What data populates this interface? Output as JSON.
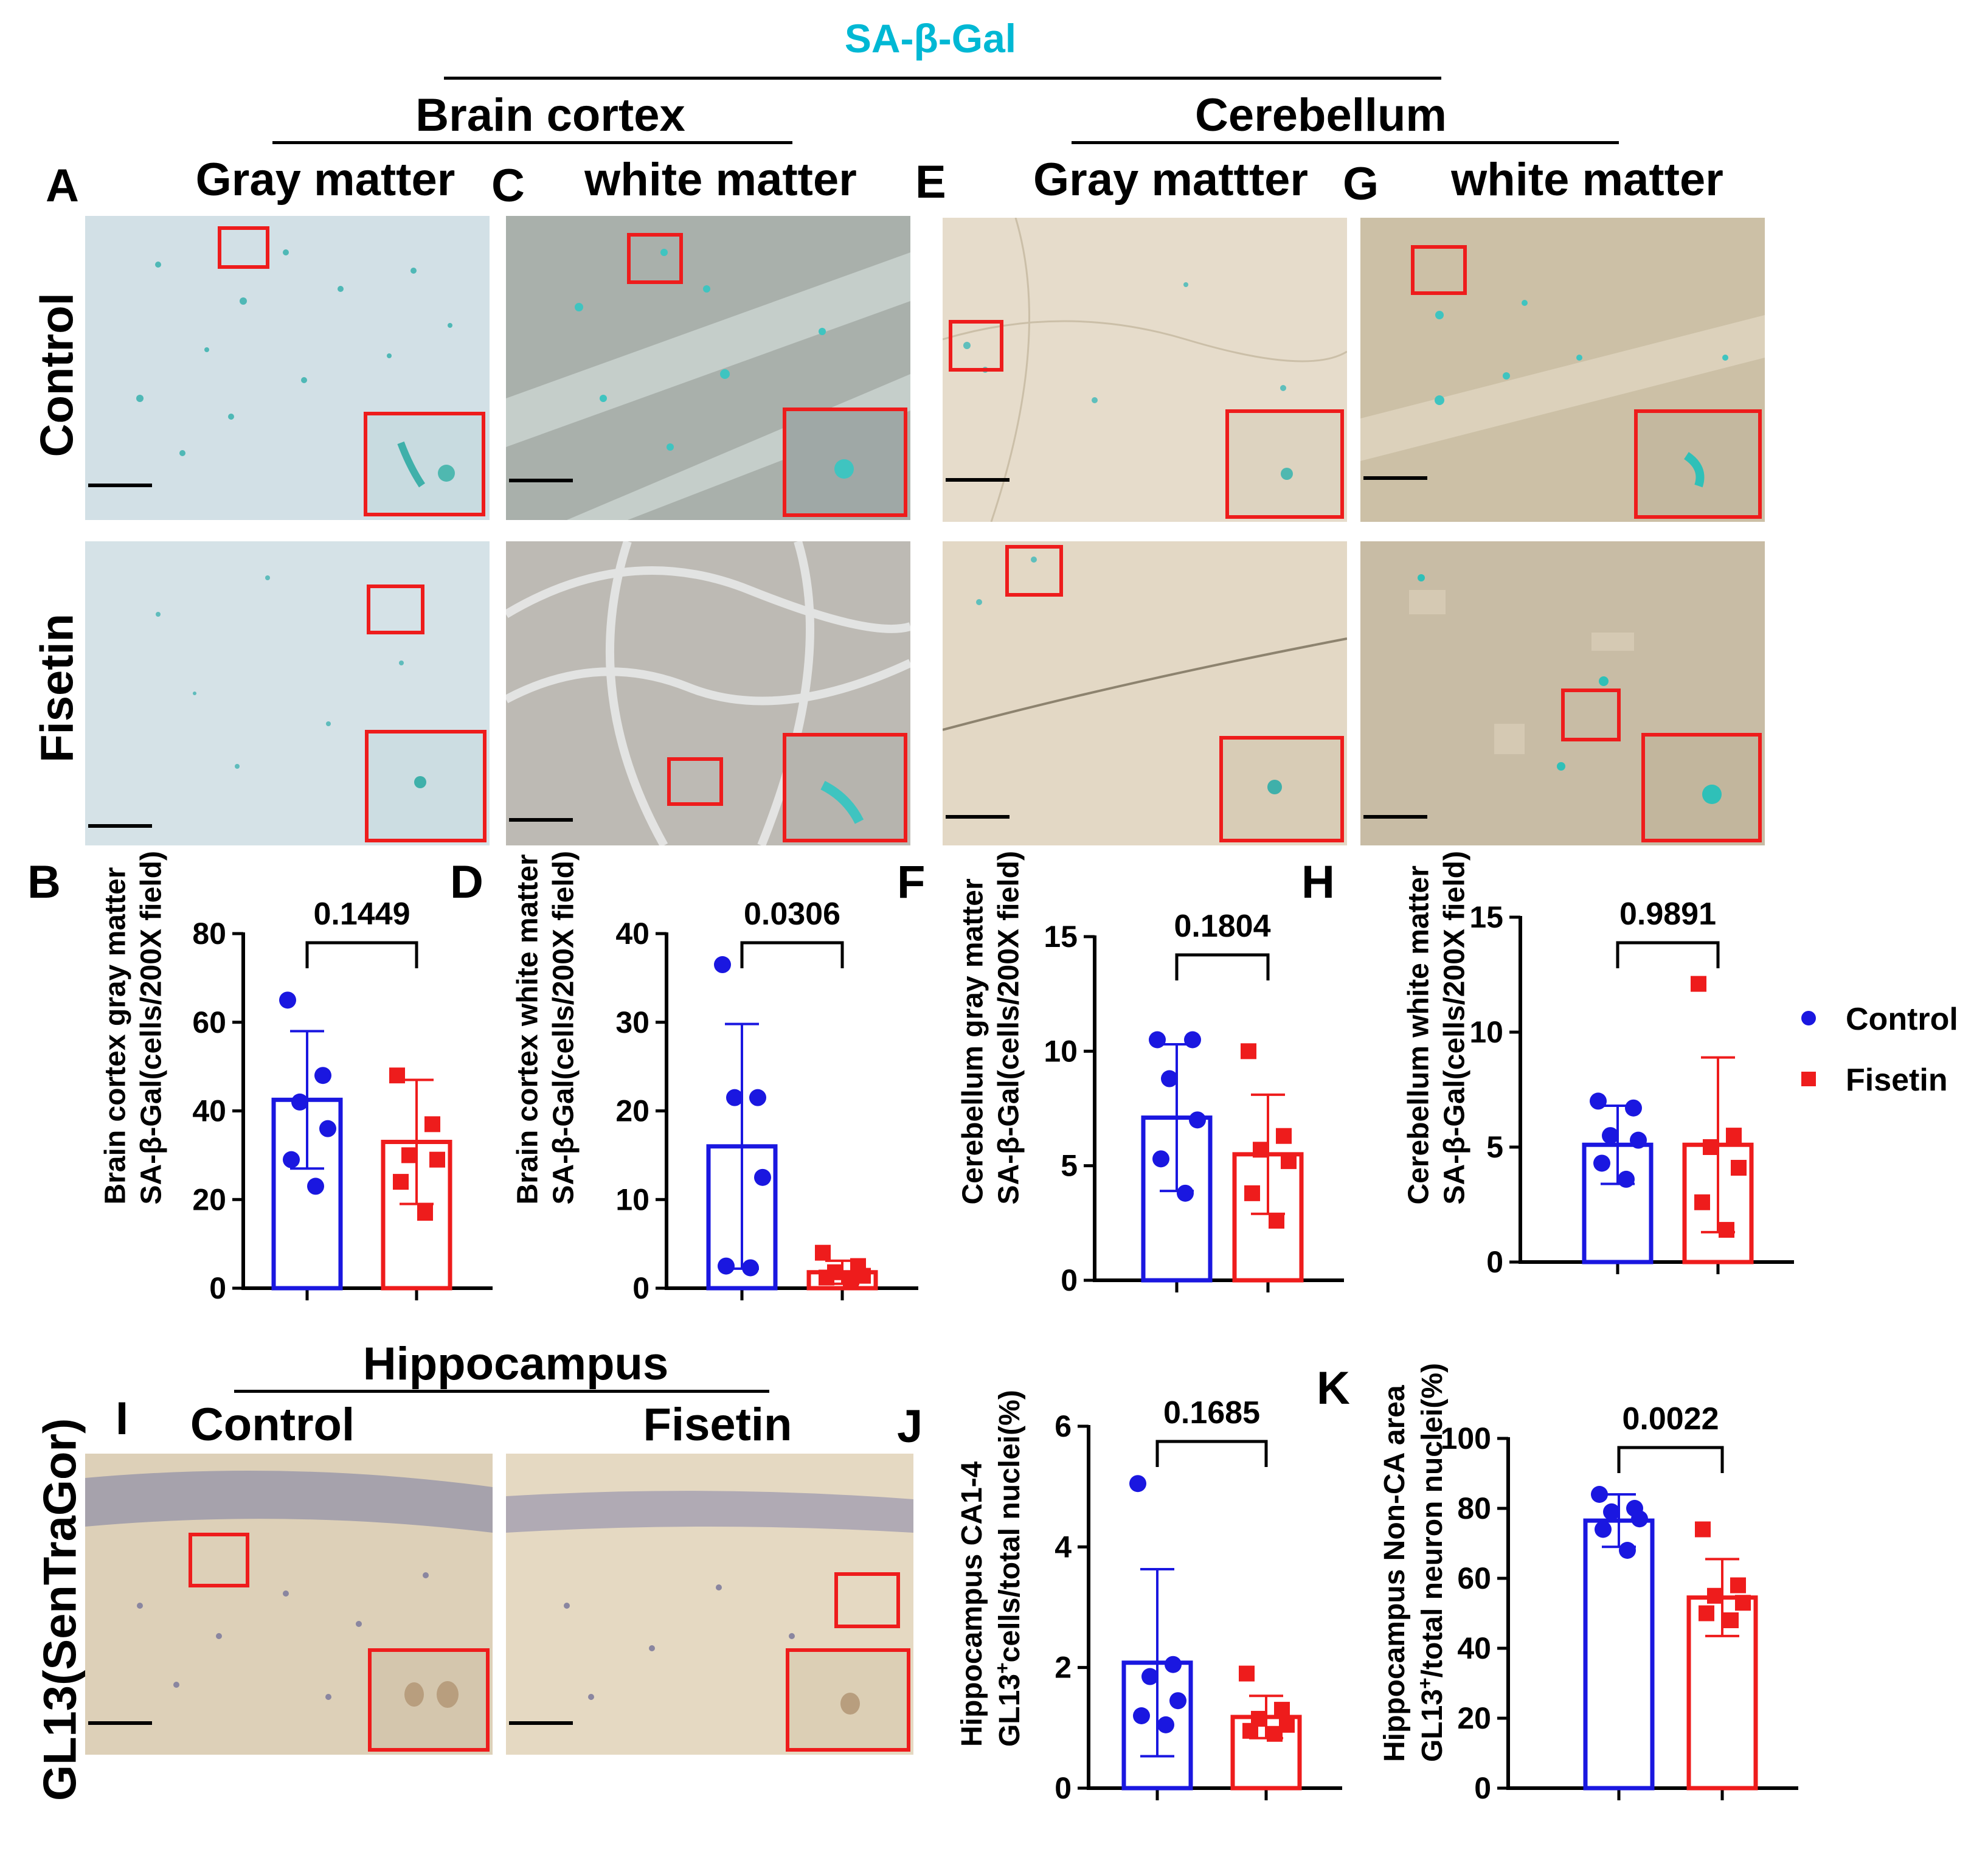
{
  "figure_title": "SA-β-Gal",
  "figure_title_color": "#00b8d4",
  "regions": {
    "brain_cortex": "Brain cortex",
    "cerebellum": "Cerebellum",
    "hippocampus": "Hippocampus"
  },
  "panel_letters": {
    "A": "A",
    "B": "B",
    "C": "C",
    "D": "D",
    "E": "E",
    "F": "F",
    "G": "G",
    "H": "H",
    "I": "I",
    "J": "J",
    "K": "K"
  },
  "column_titles": {
    "a": "Gray matter",
    "c": "white matter",
    "e": "Gray mattter",
    "g": "white matter",
    "i_control": "Control",
    "i_fisetin": "Fisetin"
  },
  "row_labels": {
    "control": "Control",
    "fisetin": "Fisetin",
    "gl13": "GL13(SenTraGor)"
  },
  "legend": {
    "control": "Control",
    "fisetin": "Fisetin"
  },
  "colors": {
    "control": "#1a17e0",
    "fisetin": "#ee1c1c",
    "inset_box": "#ee1c1c",
    "stain_blue": "#3fb8b0"
  },
  "chart_data": [
    {
      "id": "B",
      "type": "bar",
      "categories": [
        "Control",
        "Fisetin"
      ],
      "means": [
        42.5,
        33.0
      ],
      "sd": [
        15.5,
        14.0
      ],
      "points": [
        [
          65,
          48,
          42,
          36,
          29,
          23
        ],
        [
          48,
          37,
          30,
          29,
          24,
          17
        ]
      ],
      "ylim": [
        0,
        80
      ],
      "yticks": [
        0,
        20,
        40,
        60,
        80
      ],
      "ylabel_line1": "Brain cortex gray matter",
      "ylabel_line2": "SA-β-Gal(cells/200X field)",
      "pvalue": "0.1449"
    },
    {
      "id": "D",
      "type": "bar",
      "categories": [
        "Control",
        "Fisetin"
      ],
      "means": [
        16.0,
        1.8
      ],
      "sd": [
        13.8,
        1.3
      ],
      "points": [
        [
          36.5,
          21.5,
          21.5,
          12.5,
          2.5,
          2.3
        ],
        [
          4.0,
          2.5,
          1.8,
          1.4,
          1.2,
          1.0
        ]
      ],
      "ylim": [
        0,
        40
      ],
      "yticks": [
        0,
        10,
        20,
        30,
        40
      ],
      "ylabel_line1": "Brain cortex white matter",
      "ylabel_line2": "SA-β-Gal(cells/200X field)",
      "pvalue": "0.0306"
    },
    {
      "id": "F",
      "type": "bar",
      "categories": [
        "Control",
        "Fisetin"
      ],
      "means": [
        7.1,
        5.5
      ],
      "sd": [
        3.2,
        2.6
      ],
      "points": [
        [
          10.5,
          10.5,
          8.8,
          7.0,
          5.3,
          3.8
        ],
        [
          10.0,
          6.3,
          5.7,
          5.2,
          3.8,
          2.6
        ]
      ],
      "ylim": [
        0,
        15
      ],
      "yticks": [
        0,
        5,
        10,
        15
      ],
      "ylabel_line1": "Cerebellum gray matter",
      "ylabel_line2": "SA-β-Gal(cells/200X field)",
      "pvalue": "0.1804"
    },
    {
      "id": "H",
      "type": "bar",
      "categories": [
        "Control",
        "Fisetin"
      ],
      "means": [
        5.1,
        5.1
      ],
      "sd": [
        1.7,
        3.8
      ],
      "points": [
        [
          7.0,
          6.7,
          5.5,
          5.3,
          4.3,
          3.6
        ],
        [
          12.1,
          5.5,
          5.0,
          4.1,
          2.6,
          1.4
        ]
      ],
      "ylim": [
        0,
        15
      ],
      "yticks": [
        0,
        5,
        10,
        15
      ],
      "ylabel_line1": "Cerebellum white matter",
      "ylabel_line2": "SA-β-Gal(cells/200X field)",
      "pvalue": "0.9891"
    },
    {
      "id": "J",
      "type": "bar",
      "categories": [
        "Control",
        "Fisetin"
      ],
      "means": [
        2.08,
        1.18
      ],
      "sd": [
        1.55,
        0.35
      ],
      "points": [
        [
          5.05,
          2.05,
          1.85,
          1.45,
          1.2,
          1.05
        ],
        [
          1.9,
          1.3,
          1.15,
          1.05,
          0.95,
          0.9
        ]
      ],
      "ylim": [
        0,
        6
      ],
      "yticks": [
        0,
        2,
        4,
        6
      ],
      "ylabel_line1": "Hippocampus CA1-4",
      "ylabel_line2_pre": "GL13",
      "ylabel_line2_sup": "+",
      "ylabel_line2_post": "cells/total nuclei(%)",
      "pvalue": "0.1685"
    },
    {
      "id": "K",
      "type": "bar",
      "categories": [
        "Control",
        "Fisetin"
      ],
      "means": [
        76.5,
        54.5
      ],
      "sd": [
        7.5,
        11.0
      ],
      "points": [
        [
          84,
          80,
          79,
          77,
          74,
          68
        ],
        [
          74,
          58,
          55,
          53,
          50,
          48
        ]
      ],
      "ylim": [
        0,
        100
      ],
      "yticks": [
        0,
        20,
        40,
        60,
        80,
        100
      ],
      "ylabel_line1": "Hippocampus Non-CA area",
      "ylabel_line2_pre": "GL13",
      "ylabel_line2_sup": "+",
      "ylabel_line2_post": "/total neuron nuclei(%)",
      "pvalue": "0.0022"
    }
  ]
}
